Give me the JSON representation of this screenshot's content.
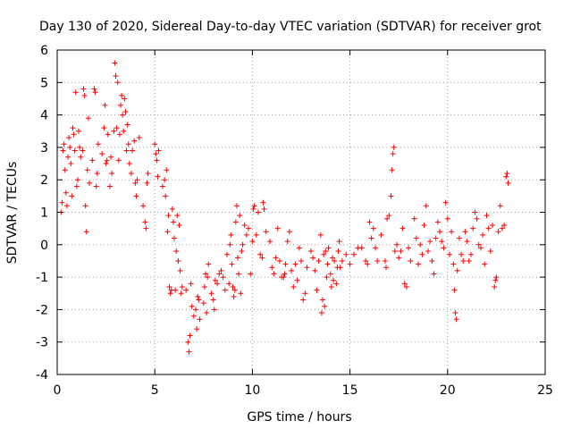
{
  "chart_data": {
    "type": "scatter",
    "title": "Day 130 of 2020, Sidereal Day-to-day VTEC variation (SDTVAR) for receiver grot",
    "xlabel": "GPS time / hours",
    "ylabel": "SDTVAR / TECUs",
    "xlim": [
      0,
      25
    ],
    "ylim": [
      -4,
      6
    ],
    "xticks": [
      "0",
      "5",
      "10",
      "15",
      "20",
      "25"
    ],
    "yticks": [
      "-4",
      "-3",
      "-2",
      "-1",
      "0",
      "1",
      "2",
      "3",
      "4",
      "5",
      "6"
    ],
    "grid": true,
    "marker": "+",
    "color": "#ff0000",
    "series": [
      {
        "name": "SDTVAR",
        "points": [
          [
            0.2,
            1.0
          ],
          [
            0.25,
            1.3
          ],
          [
            0.3,
            2.9
          ],
          [
            0.35,
            3.1
          ],
          [
            0.4,
            2.3
          ],
          [
            0.45,
            1.6
          ],
          [
            0.5,
            1.2
          ],
          [
            0.55,
            2.7
          ],
          [
            0.6,
            3.3
          ],
          [
            0.65,
            3.0
          ],
          [
            0.7,
            2.5
          ],
          [
            0.75,
            1.5
          ],
          [
            0.8,
            3.6
          ],
          [
            0.85,
            3.4
          ],
          [
            0.9,
            2.9
          ],
          [
            0.95,
            4.7
          ],
          [
            1.0,
            1.8
          ],
          [
            1.05,
            2.0
          ],
          [
            1.1,
            3.5
          ],
          [
            1.15,
            3.0
          ],
          [
            1.2,
            2.7
          ],
          [
            1.3,
            2.9
          ],
          [
            1.35,
            4.8
          ],
          [
            1.4,
            4.6
          ],
          [
            1.45,
            1.2
          ],
          [
            1.5,
            0.4
          ],
          [
            1.55,
            2.3
          ],
          [
            1.6,
            3.9
          ],
          [
            1.65,
            1.9
          ],
          [
            1.8,
            2.6
          ],
          [
            1.9,
            4.8
          ],
          [
            1.95,
            4.7
          ],
          [
            2.0,
            1.8
          ],
          [
            2.05,
            2.2
          ],
          [
            2.1,
            3.1
          ],
          [
            2.3,
            2.8
          ],
          [
            2.4,
            3.6
          ],
          [
            2.45,
            4.3
          ],
          [
            2.5,
            2.5
          ],
          [
            2.55,
            2.6
          ],
          [
            2.6,
            3.4
          ],
          [
            2.7,
            1.8
          ],
          [
            2.75,
            2.7
          ],
          [
            2.8,
            2.2
          ],
          [
            2.9,
            3.5
          ],
          [
            2.95,
            5.6
          ],
          [
            3.0,
            5.2
          ],
          [
            3.05,
            3.6
          ],
          [
            3.1,
            5.0
          ],
          [
            3.15,
            2.6
          ],
          [
            3.2,
            3.4
          ],
          [
            3.25,
            4.3
          ],
          [
            3.3,
            4.6
          ],
          [
            3.35,
            4.0
          ],
          [
            3.4,
            3.5
          ],
          [
            3.45,
            4.5
          ],
          [
            3.5,
            4.1
          ],
          [
            3.55,
            2.9
          ],
          [
            3.6,
            3.7
          ],
          [
            3.65,
            3.1
          ],
          [
            3.7,
            2.5
          ],
          [
            3.8,
            2.2
          ],
          [
            3.85,
            2.9
          ],
          [
            3.95,
            3.2
          ],
          [
            4.0,
            1.9
          ],
          [
            4.05,
            1.5
          ],
          [
            4.1,
            2.0
          ],
          [
            4.2,
            3.3
          ],
          [
            4.4,
            1.2
          ],
          [
            4.5,
            0.7
          ],
          [
            4.55,
            0.5
          ],
          [
            4.6,
            1.9
          ],
          [
            4.65,
            2.2
          ],
          [
            5.0,
            3.1
          ],
          [
            5.05,
            2.8
          ],
          [
            5.1,
            2.6
          ],
          [
            5.15,
            2.1
          ],
          [
            5.2,
            2.9
          ],
          [
            5.4,
            1.8
          ],
          [
            5.5,
            2.0
          ],
          [
            5.55,
            1.5
          ],
          [
            5.6,
            2.3
          ],
          [
            5.65,
            0.4
          ],
          [
            5.7,
            0.9
          ],
          [
            5.75,
            -1.3
          ],
          [
            5.8,
            -1.5
          ],
          [
            5.85,
            -1.4
          ],
          [
            5.9,
            1.1
          ],
          [
            5.95,
            0.7
          ],
          [
            6.0,
            0.2
          ],
          [
            6.05,
            -1.4
          ],
          [
            6.1,
            -0.2
          ],
          [
            6.15,
            0.9
          ],
          [
            6.2,
            -0.5
          ],
          [
            6.25,
            0.6
          ],
          [
            6.3,
            -0.8
          ],
          [
            6.35,
            -1.5
          ],
          [
            6.4,
            -1.3
          ],
          [
            6.6,
            -1.4
          ],
          [
            6.7,
            -3.0
          ],
          [
            6.75,
            -3.3
          ],
          [
            6.8,
            -2.8
          ],
          [
            6.85,
            -1.2
          ],
          [
            6.9,
            -1.9
          ],
          [
            7.0,
            -2.2
          ],
          [
            7.1,
            -2.0
          ],
          [
            7.15,
            -2.6
          ],
          [
            7.2,
            -1.6
          ],
          [
            7.25,
            -1.7
          ],
          [
            7.3,
            -2.3
          ],
          [
            7.5,
            -1.8
          ],
          [
            7.55,
            -1.3
          ],
          [
            7.6,
            -0.9
          ],
          [
            7.65,
            -2.1
          ],
          [
            7.7,
            -1.0
          ],
          [
            7.75,
            -0.6
          ],
          [
            7.9,
            -1.5
          ],
          [
            8.0,
            -1.7
          ],
          [
            8.05,
            -2.0
          ],
          [
            8.1,
            -1.1
          ],
          [
            8.2,
            -1.2
          ],
          [
            8.3,
            -0.9
          ],
          [
            8.4,
            -0.8
          ],
          [
            8.5,
            -1.0
          ],
          [
            8.6,
            -1.4
          ],
          [
            8.7,
            -0.3
          ],
          [
            8.8,
            -1.2
          ],
          [
            8.85,
            0.0
          ],
          [
            8.9,
            0.3
          ],
          [
            8.95,
            -0.6
          ],
          [
            9.0,
            -1.3
          ],
          [
            9.05,
            -1.6
          ],
          [
            9.1,
            -1.4
          ],
          [
            9.15,
            0.7
          ],
          [
            9.2,
            1.2
          ],
          [
            9.25,
            -0.4
          ],
          [
            9.3,
            -0.9
          ],
          [
            9.35,
            0.9
          ],
          [
            9.4,
            -1.5
          ],
          [
            9.45,
            -0.2
          ],
          [
            9.5,
            0.0
          ],
          [
            9.6,
            0.6
          ],
          [
            9.7,
            0.3
          ],
          [
            9.8,
            0.5
          ],
          [
            9.9,
            -0.9
          ],
          [
            10.0,
            0.1
          ],
          [
            10.05,
            1.1
          ],
          [
            10.1,
            1.2
          ],
          [
            10.2,
            0.3
          ],
          [
            10.3,
            1.0
          ],
          [
            10.4,
            -0.3
          ],
          [
            10.5,
            -0.4
          ],
          [
            10.55,
            1.3
          ],
          [
            10.6,
            1.1
          ],
          [
            10.7,
            0.4
          ],
          [
            10.9,
            0.1
          ],
          [
            11.0,
            -0.7
          ],
          [
            11.1,
            -0.9
          ],
          [
            11.2,
            -0.4
          ],
          [
            11.3,
            0.5
          ],
          [
            11.4,
            -0.5
          ],
          [
            11.5,
            -1.0
          ],
          [
            11.6,
            -1.0
          ],
          [
            11.65,
            -0.9
          ],
          [
            11.7,
            -0.6
          ],
          [
            11.8,
            0.1
          ],
          [
            11.9,
            0.4
          ],
          [
            12.0,
            -0.8
          ],
          [
            12.1,
            -1.3
          ],
          [
            12.2,
            -0.6
          ],
          [
            12.3,
            -1.1
          ],
          [
            12.4,
            -0.1
          ],
          [
            12.5,
            -0.5
          ],
          [
            12.6,
            -1.7
          ],
          [
            12.7,
            -1.5
          ],
          [
            12.8,
            -0.7
          ],
          [
            13.0,
            -0.2
          ],
          [
            13.1,
            -0.4
          ],
          [
            13.2,
            -0.8
          ],
          [
            13.3,
            -1.4
          ],
          [
            13.4,
            -0.5
          ],
          [
            13.5,
            0.3
          ],
          [
            13.55,
            -2.1
          ],
          [
            13.6,
            -1.7
          ],
          [
            13.65,
            -0.3
          ],
          [
            13.7,
            -1.9
          ],
          [
            13.75,
            -0.2
          ],
          [
            13.8,
            -1.0
          ],
          [
            13.85,
            -0.6
          ],
          [
            13.9,
            -0.1
          ],
          [
            14.0,
            -0.9
          ],
          [
            14.05,
            -1.3
          ],
          [
            14.1,
            -0.4
          ],
          [
            14.15,
            -1.1
          ],
          [
            14.2,
            -0.5
          ],
          [
            14.3,
            -1.2
          ],
          [
            14.35,
            -0.7
          ],
          [
            14.4,
            -0.2
          ],
          [
            14.45,
            0.1
          ],
          [
            14.5,
            -0.7
          ],
          [
            14.6,
            -0.5
          ],
          [
            14.8,
            -0.3
          ],
          [
            15.0,
            -0.6
          ],
          [
            15.2,
            -0.3
          ],
          [
            15.4,
            -0.1
          ],
          [
            15.6,
            -0.1
          ],
          [
            15.8,
            -0.5
          ],
          [
            15.9,
            -0.6
          ],
          [
            16.0,
            0.7
          ],
          [
            16.1,
            0.2
          ],
          [
            16.2,
            0.5
          ],
          [
            16.3,
            -0.1
          ],
          [
            16.4,
            -0.5
          ],
          [
            16.6,
            0.3
          ],
          [
            16.8,
            -0.5
          ],
          [
            16.85,
            -0.7
          ],
          [
            16.9,
            0.8
          ],
          [
            17.0,
            0.9
          ],
          [
            17.1,
            1.5
          ],
          [
            17.15,
            2.3
          ],
          [
            17.2,
            2.8
          ],
          [
            17.25,
            3.0
          ],
          [
            17.3,
            -0.2
          ],
          [
            17.4,
            0.0
          ],
          [
            17.5,
            -0.4
          ],
          [
            17.6,
            -0.2
          ],
          [
            17.7,
            0.5
          ],
          [
            17.8,
            -1.2
          ],
          [
            17.9,
            -1.3
          ],
          [
            18.0,
            -0.1
          ],
          [
            18.1,
            -0.5
          ],
          [
            18.3,
            0.8
          ],
          [
            18.4,
            0.2
          ],
          [
            18.5,
            -0.6
          ],
          [
            18.6,
            0.0
          ],
          [
            18.7,
            -0.3
          ],
          [
            18.8,
            0.6
          ],
          [
            18.9,
            1.2
          ],
          [
            19.0,
            -0.2
          ],
          [
            19.1,
            0.1
          ],
          [
            19.2,
            -0.5
          ],
          [
            19.3,
            -0.9
          ],
          [
            19.4,
            0.2
          ],
          [
            19.5,
            0.7
          ],
          [
            19.6,
            0.4
          ],
          [
            19.7,
            0.1
          ],
          [
            19.8,
            -0.1
          ],
          [
            19.9,
            1.3
          ],
          [
            20.0,
            0.8
          ],
          [
            20.1,
            -0.3
          ],
          [
            20.2,
            0.4
          ],
          [
            20.3,
            -0.6
          ],
          [
            20.35,
            -1.4
          ],
          [
            20.4,
            -2.1
          ],
          [
            20.45,
            -2.3
          ],
          [
            20.5,
            -0.8
          ],
          [
            20.6,
            0.2
          ],
          [
            20.7,
            -0.3
          ],
          [
            20.8,
            -0.5
          ],
          [
            20.9,
            0.4
          ],
          [
            21.0,
            0.1
          ],
          [
            21.1,
            -0.5
          ],
          [
            21.2,
            -0.3
          ],
          [
            21.3,
            0.5
          ],
          [
            21.4,
            1.0
          ],
          [
            21.5,
            0.8
          ],
          [
            21.6,
            0.0
          ],
          [
            21.7,
            -0.1
          ],
          [
            21.8,
            0.3
          ],
          [
            21.9,
            -0.6
          ],
          [
            22.0,
            0.9
          ],
          [
            22.1,
            0.5
          ],
          [
            22.2,
            -0.2
          ],
          [
            22.3,
            0.6
          ],
          [
            22.4,
            -1.3
          ],
          [
            22.45,
            -1.1
          ],
          [
            22.5,
            -1.0
          ],
          [
            22.6,
            0.4
          ],
          [
            22.7,
            1.2
          ],
          [
            22.8,
            0.5
          ],
          [
            22.9,
            0.6
          ],
          [
            23.0,
            2.1
          ],
          [
            23.05,
            2.2
          ],
          [
            23.1,
            1.9
          ]
        ]
      }
    ]
  }
}
